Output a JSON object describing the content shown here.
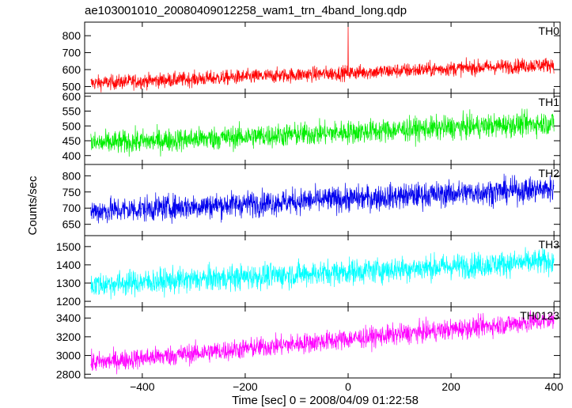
{
  "chart_data": {
    "type": "line",
    "title": "ae103001010_20080409012258_wam1_trn_4band_long.qdp",
    "xlabel": "Time [sec] 0 = 2008/04/09 01:22:58",
    "ylabel": "Counts/sec",
    "xlim": [
      -512,
      412
    ],
    "x_ticks": [
      -400,
      -200,
      0,
      200,
      400
    ],
    "grid": false,
    "panels": [
      {
        "name": "TH0",
        "color": "#ff0000",
        "ylim": [
          460,
          880
        ],
        "y_ticks": [
          500,
          600,
          700,
          800
        ],
        "start": 520,
        "end": 630,
        "noise": 22,
        "x": [
          -500,
          400
        ],
        "y": [
          520,
          630
        ],
        "spike": {
          "x": 0,
          "y": 880
        }
      },
      {
        "name": "TH1",
        "color": "#00ee00",
        "ylim": [
          370,
          610
        ],
        "y_ticks": [
          400,
          450,
          500,
          550,
          600
        ],
        "start": 440,
        "end": 510,
        "noise": 20,
        "x": [
          -500,
          400
        ],
        "y": [
          440,
          510
        ]
      },
      {
        "name": "TH2",
        "color": "#0000ee",
        "ylim": [
          615,
          835
        ],
        "y_ticks": [
          650,
          700,
          750,
          800
        ],
        "start": 690,
        "end": 760,
        "noise": 20,
        "x": [
          -500,
          400
        ],
        "y": [
          690,
          760
        ]
      },
      {
        "name": "TH3",
        "color": "#00ffff",
        "ylim": [
          1170,
          1560
        ],
        "y_ticks": [
          1200,
          1300,
          1400,
          1500
        ],
        "start": 1290,
        "end": 1420,
        "noise": 35,
        "x": [
          -500,
          400
        ],
        "y": [
          1290,
          1420
        ]
      },
      {
        "name": "TH0123",
        "color": "#ff00ff",
        "ylim": [
          2760,
          3520
        ],
        "y_ticks": [
          2800,
          3000,
          3200,
          3400
        ],
        "start": 2920,
        "end": 3380,
        "noise": 55,
        "x": [
          -500,
          400
        ],
        "y": [
          2920,
          3380
        ]
      }
    ]
  }
}
